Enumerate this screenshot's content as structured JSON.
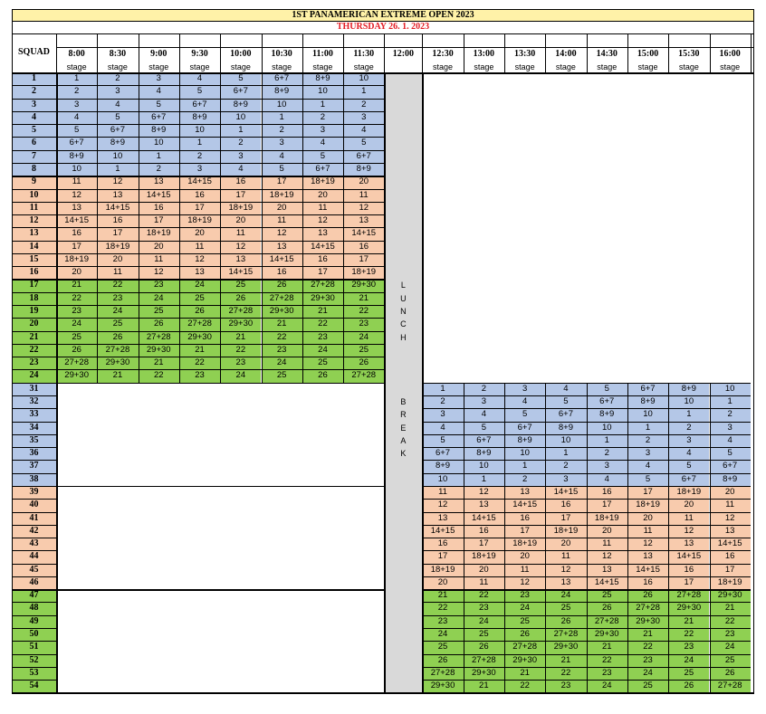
{
  "title": "1ST PANAMERICAN EXTREME OPEN 2023",
  "subtitle": "THURSDAY 26. 1. 2023",
  "squad_header": "SQUAD",
  "times_morning": [
    "8:00",
    "8:30",
    "9:00",
    "9:30",
    "10:00",
    "10:30",
    "11:00",
    "11:30"
  ],
  "lunch_time": "12:00",
  "times_afternoon": [
    "12:30",
    "13:00",
    "13:30",
    "14:00",
    "14:30",
    "15:00",
    "15:30",
    "16:00"
  ],
  "stage_label": "stage",
  "lunch_break_letters": [
    "L",
    "U",
    "N",
    "C",
    "H",
    "",
    "",
    "",
    "",
    "B",
    "R",
    "E",
    "A",
    "K"
  ],
  "colors": {
    "blue": "#b4c7e7",
    "peach": "#f8cbad",
    "green": "#8fd052",
    "title_bg": "#fff2a8",
    "subtitle_color": "#e31b23",
    "lunch_gray": "#d9d9d9"
  },
  "groups": [
    {
      "color": "blue",
      "rows": [
        {
          "squad": "1",
          "stages": [
            "1",
            "2",
            "3",
            "4",
            "5",
            "6+7",
            "8+9",
            "10"
          ]
        },
        {
          "squad": "2",
          "stages": [
            "2",
            "3",
            "4",
            "5",
            "6+7",
            "8+9",
            "10",
            "1"
          ]
        },
        {
          "squad": "3",
          "stages": [
            "3",
            "4",
            "5",
            "6+7",
            "8+9",
            "10",
            "1",
            "2"
          ]
        },
        {
          "squad": "4",
          "stages": [
            "4",
            "5",
            "6+7",
            "8+9",
            "10",
            "1",
            "2",
            "3"
          ]
        },
        {
          "squad": "5",
          "stages": [
            "5",
            "6+7",
            "8+9",
            "10",
            "1",
            "2",
            "3",
            "4"
          ]
        },
        {
          "squad": "6",
          "stages": [
            "6+7",
            "8+9",
            "10",
            "1",
            "2",
            "3",
            "4",
            "5"
          ]
        },
        {
          "squad": "7",
          "stages": [
            "8+9",
            "10",
            "1",
            "2",
            "3",
            "4",
            "5",
            "6+7"
          ]
        },
        {
          "squad": "8",
          "stages": [
            "10",
            "1",
            "2",
            "3",
            "4",
            "5",
            "6+7",
            "8+9"
          ]
        }
      ]
    },
    {
      "color": "peach",
      "rows": [
        {
          "squad": "9",
          "stages": [
            "11",
            "12",
            "13",
            "14+15",
            "16",
            "17",
            "18+19",
            "20"
          ]
        },
        {
          "squad": "10",
          "stages": [
            "12",
            "13",
            "14+15",
            "16",
            "17",
            "18+19",
            "20",
            "11"
          ]
        },
        {
          "squad": "11",
          "stages": [
            "13",
            "14+15",
            "16",
            "17",
            "18+19",
            "20",
            "11",
            "12"
          ]
        },
        {
          "squad": "12",
          "stages": [
            "14+15",
            "16",
            "17",
            "18+19",
            "20",
            "11",
            "12",
            "13"
          ]
        },
        {
          "squad": "13",
          "stages": [
            "16",
            "17",
            "18+19",
            "20",
            "11",
            "12",
            "13",
            "14+15"
          ]
        },
        {
          "squad": "14",
          "stages": [
            "17",
            "18+19",
            "20",
            "11",
            "12",
            "13",
            "14+15",
            "16"
          ]
        },
        {
          "squad": "15",
          "stages": [
            "18+19",
            "20",
            "11",
            "12",
            "13",
            "14+15",
            "16",
            "17"
          ]
        },
        {
          "squad": "16",
          "stages": [
            "20",
            "11",
            "12",
            "13",
            "14+15",
            "16",
            "17",
            "18+19"
          ]
        }
      ]
    },
    {
      "color": "green",
      "rows": [
        {
          "squad": "17",
          "stages": [
            "21",
            "22",
            "23",
            "24",
            "25",
            "26",
            "27+28",
            "29+30"
          ]
        },
        {
          "squad": "18",
          "stages": [
            "22",
            "23",
            "24",
            "25",
            "26",
            "27+28",
            "29+30",
            "21"
          ]
        },
        {
          "squad": "19",
          "stages": [
            "23",
            "24",
            "25",
            "26",
            "27+28",
            "29+30",
            "21",
            "22"
          ]
        },
        {
          "squad": "20",
          "stages": [
            "24",
            "25",
            "26",
            "27+28",
            "29+30",
            "21",
            "22",
            "23"
          ]
        },
        {
          "squad": "21",
          "stages": [
            "25",
            "26",
            "27+28",
            "29+30",
            "21",
            "22",
            "23",
            "24"
          ]
        },
        {
          "squad": "22",
          "stages": [
            "26",
            "27+28",
            "29+30",
            "21",
            "22",
            "23",
            "24",
            "25"
          ]
        },
        {
          "squad": "23",
          "stages": [
            "27+28",
            "29+30",
            "21",
            "22",
            "23",
            "24",
            "25",
            "26"
          ]
        },
        {
          "squad": "24",
          "stages": [
            "29+30",
            "21",
            "22",
            "23",
            "24",
            "25",
            "26",
            "27+28"
          ]
        }
      ]
    },
    {
      "color": "blue",
      "rows": [
        {
          "squad": "31",
          "stages": [
            "1",
            "2",
            "3",
            "4",
            "5",
            "6+7",
            "8+9",
            "10"
          ]
        },
        {
          "squad": "32",
          "stages": [
            "2",
            "3",
            "4",
            "5",
            "6+7",
            "8+9",
            "10",
            "1"
          ]
        },
        {
          "squad": "33",
          "stages": [
            "3",
            "4",
            "5",
            "6+7",
            "8+9",
            "10",
            "1",
            "2"
          ]
        },
        {
          "squad": "34",
          "stages": [
            "4",
            "5",
            "6+7",
            "8+9",
            "10",
            "1",
            "2",
            "3"
          ]
        },
        {
          "squad": "35",
          "stages": [
            "5",
            "6+7",
            "8+9",
            "10",
            "1",
            "2",
            "3",
            "4"
          ]
        },
        {
          "squad": "36",
          "stages": [
            "6+7",
            "8+9",
            "10",
            "1",
            "2",
            "3",
            "4",
            "5"
          ]
        },
        {
          "squad": "37",
          "stages": [
            "8+9",
            "10",
            "1",
            "2",
            "3",
            "4",
            "5",
            "6+7"
          ]
        },
        {
          "squad": "38",
          "stages": [
            "10",
            "1",
            "2",
            "3",
            "4",
            "5",
            "6+7",
            "8+9"
          ]
        }
      ]
    },
    {
      "color": "peach",
      "rows": [
        {
          "squad": "39",
          "stages": [
            "11",
            "12",
            "13",
            "14+15",
            "16",
            "17",
            "18+19",
            "20"
          ]
        },
        {
          "squad": "40",
          "stages": [
            "12",
            "13",
            "14+15",
            "16",
            "17",
            "18+19",
            "20",
            "11"
          ]
        },
        {
          "squad": "41",
          "stages": [
            "13",
            "14+15",
            "16",
            "17",
            "18+19",
            "20",
            "11",
            "12"
          ]
        },
        {
          "squad": "42",
          "stages": [
            "14+15",
            "16",
            "17",
            "18+19",
            "20",
            "11",
            "12",
            "13"
          ]
        },
        {
          "squad": "43",
          "stages": [
            "16",
            "17",
            "18+19",
            "20",
            "11",
            "12",
            "13",
            "14+15"
          ]
        },
        {
          "squad": "44",
          "stages": [
            "17",
            "18+19",
            "20",
            "11",
            "12",
            "13",
            "14+15",
            "16"
          ]
        },
        {
          "squad": "45",
          "stages": [
            "18+19",
            "20",
            "11",
            "12",
            "13",
            "14+15",
            "16",
            "17"
          ]
        },
        {
          "squad": "46",
          "stages": [
            "20",
            "11",
            "12",
            "13",
            "14+15",
            "16",
            "17",
            "18+19"
          ]
        }
      ]
    },
    {
      "color": "green",
      "rows": [
        {
          "squad": "47",
          "stages": [
            "21",
            "22",
            "23",
            "24",
            "25",
            "26",
            "27+28",
            "29+30"
          ]
        },
        {
          "squad": "48",
          "stages": [
            "22",
            "23",
            "24",
            "25",
            "26",
            "27+28",
            "29+30",
            "21"
          ]
        },
        {
          "squad": "49",
          "stages": [
            "23",
            "24",
            "25",
            "26",
            "27+28",
            "29+30",
            "21",
            "22"
          ]
        },
        {
          "squad": "50",
          "stages": [
            "24",
            "25",
            "26",
            "27+28",
            "29+30",
            "21",
            "22",
            "23"
          ]
        },
        {
          "squad": "51",
          "stages": [
            "25",
            "26",
            "27+28",
            "29+30",
            "21",
            "22",
            "23",
            "24"
          ]
        },
        {
          "squad": "52",
          "stages": [
            "26",
            "27+28",
            "29+30",
            "21",
            "22",
            "23",
            "24",
            "25"
          ]
        },
        {
          "squad": "53",
          "stages": [
            "27+28",
            "29+30",
            "21",
            "22",
            "23",
            "24",
            "25",
            "26"
          ]
        },
        {
          "squad": "54",
          "stages": [
            "29+30",
            "21",
            "22",
            "23",
            "24",
            "25",
            "26",
            "27+28"
          ]
        }
      ]
    }
  ]
}
